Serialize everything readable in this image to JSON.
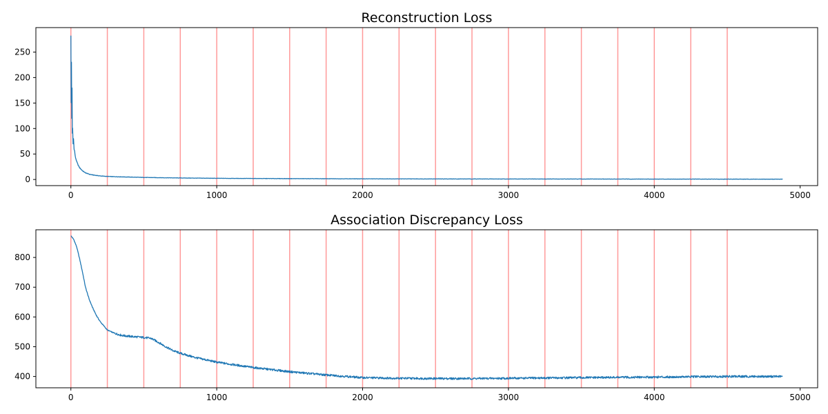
{
  "chart_data": [
    {
      "type": "line",
      "title": "Reconstruction Loss",
      "xlabel": "",
      "ylabel": "",
      "xlim": [
        -240,
        5120
      ],
      "ylim": [
        -12,
        298
      ],
      "xticks": [
        0,
        1000,
        2000,
        3000,
        4000,
        5000
      ],
      "yticks": [
        0,
        50,
        100,
        150,
        200,
        250
      ],
      "grid": false,
      "line_color": "#1f77b4",
      "vline_color": "#ff9999",
      "vlines": [
        0,
        250,
        500,
        750,
        1000,
        1250,
        1500,
        1750,
        2000,
        2250,
        2500,
        2750,
        3000,
        3250,
        3500,
        3750,
        4000,
        4250,
        4500
      ],
      "series": [
        {
          "x": [
            0,
            2,
            4,
            6,
            8,
            10,
            12,
            15,
            18,
            22,
            26,
            30,
            40,
            50,
            60,
            80,
            100,
            130,
            160,
            200,
            250,
            300,
            400,
            500,
            750,
            1000,
            1500,
            2000,
            2500,
            3000,
            3500,
            4000,
            4500,
            4880
          ],
          "y": [
            283,
            150,
            230,
            120,
            180,
            90,
            100,
            70,
            80,
            60,
            55,
            45,
            35,
            28,
            23,
            17,
            13,
            10,
            8.5,
            7,
            6,
            5.5,
            4.8,
            4,
            3,
            2.3,
            1.7,
            1.3,
            1.1,
            1,
            0.9,
            0.8,
            0.7,
            0.6
          ]
        }
      ]
    },
    {
      "type": "line",
      "title": "Association Discrepancy Loss",
      "xlabel": "",
      "ylabel": "",
      "xlim": [
        -240,
        5120
      ],
      "ylim": [
        362,
        893
      ],
      "xticks": [
        0,
        1000,
        2000,
        3000,
        4000,
        5000
      ],
      "yticks": [
        400,
        500,
        600,
        700,
        800
      ],
      "grid": false,
      "line_color": "#1f77b4",
      "vline_color": "#ff9999",
      "vlines": [
        0,
        250,
        500,
        750,
        1000,
        1250,
        1500,
        1750,
        2000,
        2250,
        2500,
        2750,
        3000,
        3250,
        3500,
        3750,
        4000,
        4250,
        4500
      ],
      "series": [
        {
          "x": [
            0,
            20,
            40,
            60,
            80,
            100,
            125,
            150,
            175,
            200,
            250,
            300,
            350,
            400,
            450,
            500,
            550,
            600,
            650,
            700,
            750,
            850,
            1000,
            1250,
            1500,
            1750,
            2000,
            2250,
            2500,
            2750,
            3000,
            3250,
            3500,
            3750,
            4000,
            4250,
            4500,
            4880
          ],
          "y": [
            873,
            860,
            835,
            795,
            750,
            700,
            660,
            630,
            605,
            585,
            556,
            545,
            538,
            535,
            533,
            531,
            528,
            515,
            500,
            487,
            478,
            464,
            448,
            430,
            416,
            405,
            396,
            394,
            393,
            393,
            394,
            395,
            396,
            397,
            398,
            399,
            400,
            400
          ]
        }
      ]
    }
  ]
}
